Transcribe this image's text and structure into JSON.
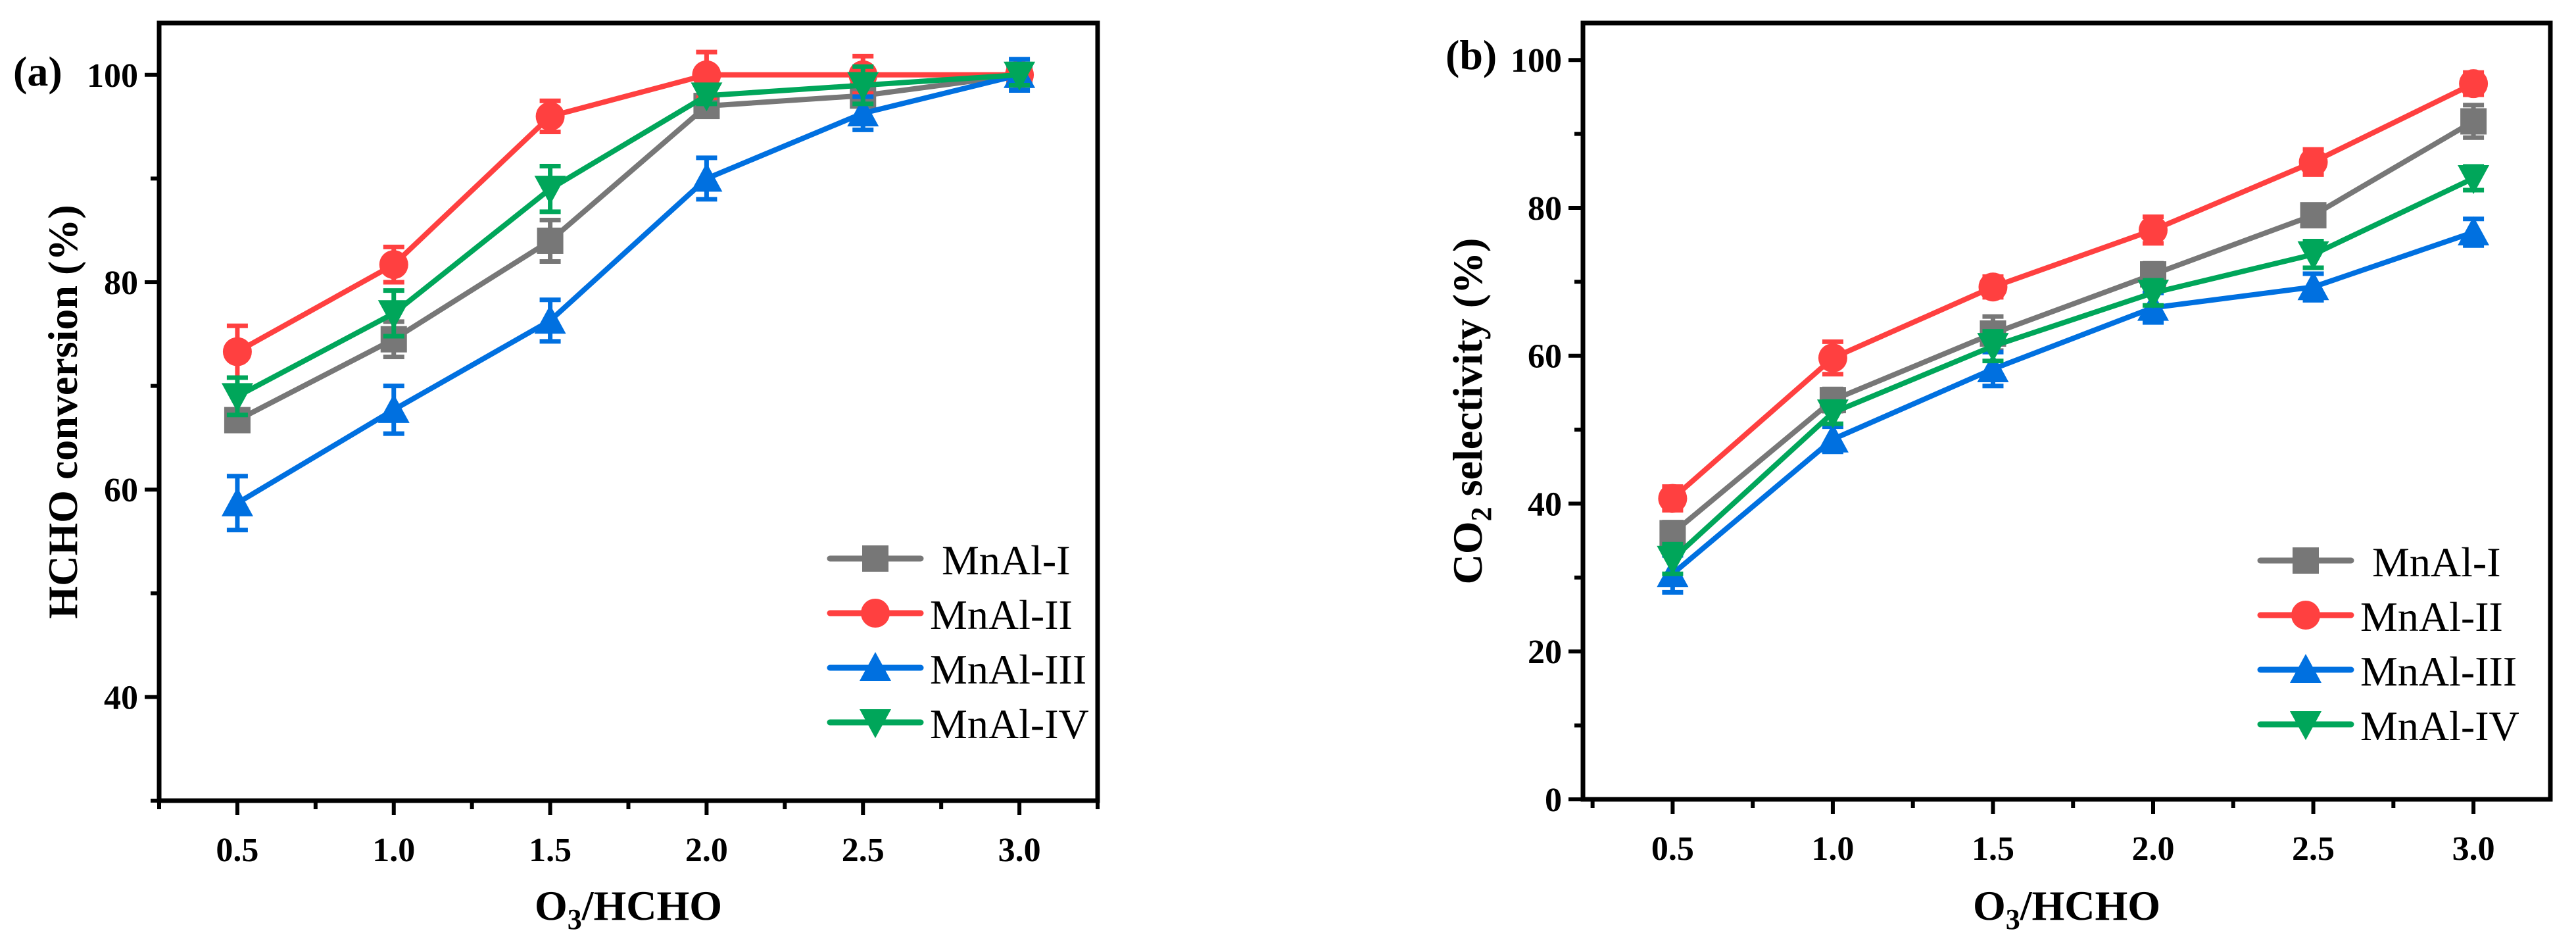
{
  "chart_data": [
    {
      "type": "line",
      "panel_label": "(a)",
      "xlabel_main": "O",
      "xlabel_sub": "3",
      "xlabel_rest": "/HCHO",
      "ylabel_main": "HCHO conversion (%)",
      "ylabel_sub": "",
      "ylabel_rest": "",
      "xlim": [
        0.25,
        3.25
      ],
      "ylim": [
        30,
        105
      ],
      "xticks": [
        0.5,
        1.0,
        1.5,
        2.0,
        2.5,
        3.0
      ],
      "xtick_labels": [
        "0.5",
        "1.0",
        "1.5",
        "2.0",
        "2.5",
        "3.0"
      ],
      "yticks": [
        40,
        60,
        80,
        100
      ],
      "ytick_labels": [
        "40",
        "60",
        "80",
        "100"
      ],
      "legend_position": "bottom-right",
      "x": [
        0.5,
        1.0,
        1.5,
        2.0,
        2.5,
        3.0
      ],
      "series": [
        {
          "name": "MnAl-I",
          "color": "#777777",
          "marker": "square",
          "values": [
            66.7,
            74.5,
            84.0,
            97.0,
            98.0,
            100.0
          ],
          "errors": [
            1.0,
            1.7,
            2.0,
            0.8,
            0.8,
            1.0
          ]
        },
        {
          "name": "MnAl-II",
          "color": "#ff4040",
          "marker": "circle",
          "values": [
            73.3,
            81.7,
            96.0,
            100.0,
            100.0,
            100.0
          ],
          "errors": [
            2.5,
            1.7,
            1.5,
            2.2,
            1.8,
            1.0
          ]
        },
        {
          "name": "MnAl-III",
          "color": "#0070e0",
          "marker": "triangle-up",
          "values": [
            58.7,
            67.7,
            76.3,
            90.0,
            96.3,
            100.0
          ],
          "errors": [
            2.6,
            2.3,
            2.0,
            2.0,
            1.6,
            1.5
          ]
        },
        {
          "name": "MnAl-IV",
          "color": "#00a65a",
          "marker": "triangle-down",
          "values": [
            69.0,
            77.0,
            89.0,
            98.0,
            99.0,
            100.0
          ],
          "errors": [
            1.8,
            2.2,
            2.2,
            0.8,
            1.8,
            1.0
          ]
        }
      ]
    },
    {
      "type": "line",
      "panel_label": "(b)",
      "xlabel_main": "O",
      "xlabel_sub": "3",
      "xlabel_rest": "/HCHO",
      "ylabel_main": "CO",
      "ylabel_sub": "2",
      "ylabel_rest": " selectivity (%)",
      "xlim": [
        0.22,
        3.24
      ],
      "ylim": [
        0,
        105
      ],
      "xticks": [
        0.5,
        1.0,
        1.5,
        2.0,
        2.5,
        3.0
      ],
      "xtick_labels": [
        "0.5",
        "1.0",
        "1.5",
        "2.0",
        "2.5",
        "3.0"
      ],
      "yticks": [
        0,
        20,
        40,
        60,
        80,
        100
      ],
      "ytick_labels": [
        "0",
        "20",
        "40",
        "60",
        "80",
        "100"
      ],
      "legend_position": "bottom-right",
      "x": [
        0.5,
        1.0,
        1.5,
        2.0,
        2.5,
        3.0
      ],
      "series": [
        {
          "name": "MnAl-I",
          "color": "#777777",
          "marker": "square",
          "values": [
            36.0,
            54.0,
            63.0,
            71.0,
            79.0,
            91.7
          ],
          "errors": [
            1.5,
            1.5,
            2.3,
            1.5,
            1.2,
            2.2
          ]
        },
        {
          "name": "MnAl-II",
          "color": "#ff4040",
          "marker": "circle",
          "values": [
            40.7,
            59.7,
            69.3,
            77.0,
            86.2,
            96.8
          ],
          "errors": [
            1.6,
            2.2,
            1.4,
            1.8,
            1.7,
            1.5
          ]
        },
        {
          "name": "MnAl-III",
          "color": "#0070e0",
          "marker": "triangle-up",
          "values": [
            30.5,
            48.7,
            58.2,
            66.5,
            69.3,
            76.7
          ],
          "errors": [
            2.5,
            1.7,
            2.3,
            2.0,
            1.8,
            1.8
          ]
        },
        {
          "name": "MnAl-IV",
          "color": "#00a65a",
          "marker": "triangle-down",
          "values": [
            32.5,
            52.3,
            61.3,
            68.5,
            73.7,
            84.0
          ],
          "errors": [
            2.0,
            1.5,
            2.0,
            1.7,
            1.8,
            1.6
          ]
        }
      ]
    }
  ]
}
